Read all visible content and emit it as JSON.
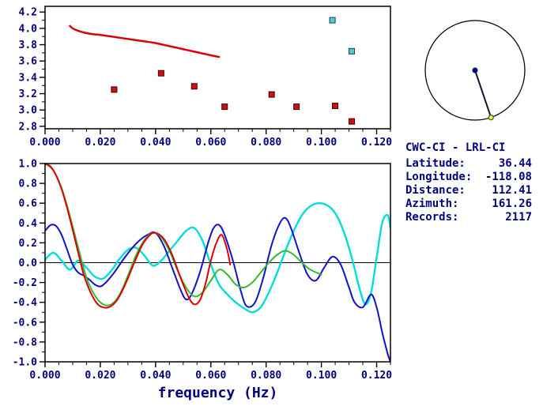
{
  "window": {
    "background": "#ffffff",
    "text_color": "#000080",
    "frame_color": "#000000"
  },
  "info_panel": {
    "title": "CWC-CI - LRL-CI",
    "rows": [
      {
        "label": "Latitude:",
        "value": "36.44"
      },
      {
        "label": "Longitude:",
        "value": "-118.08"
      },
      {
        "label": "Distance:",
        "value": "112.41"
      },
      {
        "label": "Azimuth:",
        "value": "161.26"
      },
      {
        "label": "Records:",
        "value": "2117"
      }
    ]
  },
  "azimuth_dial": {
    "azimuth_deg": 161.26,
    "circle_color": "#000000",
    "line_color": "#15152e",
    "center_dot_color": "#000080",
    "end_marker_stroke": "#557700",
    "end_marker_fill": "#eeee88"
  },
  "chart_data": [
    {
      "id": "top",
      "type": "scatter",
      "title": "",
      "xlabel": "",
      "ylabel": "",
      "x_range": [
        0,
        0.125
      ],
      "y_range": [
        2.77,
        4.27
      ],
      "x_minor_step": 0.005,
      "y_minor_step": 0.1,
      "grid": false,
      "x_ticks": {
        "values": [
          0,
          0.02,
          0.04,
          0.06,
          0.08,
          0.1,
          0.12
        ],
        "labels": [
          "0.000",
          "0.020",
          "0.040",
          "0.060",
          "0.080",
          "0.100",
          "0.120"
        ]
      },
      "y_ticks": {
        "values": [
          2.8,
          3.0,
          3.2,
          3.4,
          3.6,
          3.8,
          4.0,
          4.2
        ],
        "labels": [
          "2.8",
          "3.0",
          "3.2",
          "3.4",
          "3.6",
          "3.8",
          "4.0",
          "4.2"
        ]
      },
      "series": [
        {
          "name": "red-dispersion-curve",
          "type": "line",
          "color": "#dd0000",
          "width": 2.5,
          "points": [
            [
              0.009,
              4.03
            ],
            [
              0.01,
              4.0
            ],
            [
              0.012,
              3.97
            ],
            [
              0.014,
              3.95
            ],
            [
              0.017,
              3.93
            ],
            [
              0.02,
              3.92
            ],
            [
              0.024,
              3.9
            ],
            [
              0.028,
              3.88
            ],
            [
              0.032,
              3.86
            ],
            [
              0.036,
              3.84
            ],
            [
              0.04,
              3.82
            ],
            [
              0.044,
              3.79
            ],
            [
              0.048,
              3.76
            ],
            [
              0.052,
              3.73
            ],
            [
              0.056,
              3.7
            ],
            [
              0.06,
              3.67
            ],
            [
              0.063,
              3.65
            ]
          ]
        },
        {
          "name": "red-group-velocity-points",
          "type": "scatter",
          "marker": "square",
          "color": "#cc1111",
          "edge": "#440000",
          "size": 7,
          "points": [
            [
              0.025,
              3.25
            ],
            [
              0.042,
              3.45
            ],
            [
              0.054,
              3.29
            ],
            [
              0.065,
              3.04
            ],
            [
              0.082,
              3.19
            ],
            [
              0.091,
              3.04
            ],
            [
              0.105,
              3.05
            ],
            [
              0.111,
              2.86
            ]
          ]
        },
        {
          "name": "cyan-points",
          "type": "scatter",
          "marker": "square",
          "color": "#55cccc",
          "edge": "#114444",
          "size": 7,
          "points": [
            [
              0.104,
              4.1
            ],
            [
              0.111,
              3.72
            ]
          ]
        }
      ]
    },
    {
      "id": "bottom",
      "type": "line",
      "title": "",
      "xlabel": "frequency (Hz)",
      "ylabel": "",
      "x_range": [
        0,
        0.125
      ],
      "y_range": [
        -1.0,
        1.0
      ],
      "x_minor_step": 0.005,
      "y_minor_step": 0.1,
      "grid": false,
      "zero_line": true,
      "x_ticks": {
        "values": [
          0,
          0.02,
          0.04,
          0.06,
          0.08,
          0.1,
          0.12
        ],
        "labels": [
          "0.000",
          "0.020",
          "0.040",
          "0.060",
          "0.080",
          "0.100",
          "0.120"
        ]
      },
      "y_ticks": {
        "values": [
          1.0,
          0.8,
          0.6,
          0.4,
          0.2,
          0.0,
          -0.2,
          -0.4,
          -0.6,
          -0.8,
          -1.0
        ],
        "labels": [
          "1.0",
          "0.8",
          "0.6",
          "0.4",
          "0.2",
          "0.0",
          "-0.2",
          "-0.4",
          "-0.6",
          "-0.8",
          "-1.0"
        ]
      },
      "series": [
        {
          "name": "cyan-trace",
          "type": "line",
          "color": "#00dddd",
          "width": 2.4,
          "points": [
            [
              0,
              0.03
            ],
            [
              0.003,
              0.1
            ],
            [
              0.006,
              0.02
            ],
            [
              0.009,
              -0.07
            ],
            [
              0.012,
              0.02
            ],
            [
              0.015,
              -0.05
            ],
            [
              0.018,
              -0.14
            ],
            [
              0.021,
              -0.16
            ],
            [
              0.024,
              -0.08
            ],
            [
              0.027,
              0.04
            ],
            [
              0.03,
              0.13
            ],
            [
              0.033,
              0.15
            ],
            [
              0.036,
              0.07
            ],
            [
              0.039,
              -0.03
            ],
            [
              0.042,
              0.02
            ],
            [
              0.045,
              0.12
            ],
            [
              0.048,
              0.22
            ],
            [
              0.051,
              0.32
            ],
            [
              0.054,
              0.35
            ],
            [
              0.057,
              0.22
            ],
            [
              0.06,
              -0.02
            ],
            [
              0.063,
              -0.22
            ],
            [
              0.066,
              -0.32
            ],
            [
              0.069,
              -0.4
            ],
            [
              0.072,
              -0.46
            ],
            [
              0.075,
              -0.5
            ],
            [
              0.078,
              -0.45
            ],
            [
              0.081,
              -0.3
            ],
            [
              0.084,
              -0.1
            ],
            [
              0.087,
              0.12
            ],
            [
              0.09,
              0.32
            ],
            [
              0.093,
              0.48
            ],
            [
              0.096,
              0.57
            ],
            [
              0.099,
              0.6
            ],
            [
              0.102,
              0.58
            ],
            [
              0.105,
              0.5
            ],
            [
              0.108,
              0.32
            ],
            [
              0.111,
              0.05
            ],
            [
              0.114,
              -0.28
            ],
            [
              0.116,
              -0.42
            ],
            [
              0.118,
              -0.3
            ],
            [
              0.12,
              0.05
            ],
            [
              0.122,
              0.4
            ],
            [
              0.124,
              0.48
            ],
            [
              0.125,
              0.35
            ]
          ]
        },
        {
          "name": "blue-trace",
          "type": "line",
          "color": "#1111cc",
          "width": 2,
          "points": [
            [
              0,
              0.32
            ],
            [
              0.002,
              0.38
            ],
            [
              0.004,
              0.37
            ],
            [
              0.006,
              0.28
            ],
            [
              0.008,
              0.13
            ],
            [
              0.01,
              -0.02
            ],
            [
              0.012,
              -0.1
            ],
            [
              0.014,
              -0.13
            ],
            [
              0.016,
              -0.17
            ],
            [
              0.018,
              -0.22
            ],
            [
              0.02,
              -0.24
            ],
            [
              0.022,
              -0.2
            ],
            [
              0.025,
              -0.1
            ],
            [
              0.028,
              0.02
            ],
            [
              0.031,
              0.13
            ],
            [
              0.034,
              0.22
            ],
            [
              0.037,
              0.28
            ],
            [
              0.04,
              0.3
            ],
            [
              0.043,
              0.17
            ],
            [
              0.046,
              -0.05
            ],
            [
              0.049,
              -0.27
            ],
            [
              0.051,
              -0.37
            ],
            [
              0.053,
              -0.32
            ],
            [
              0.056,
              -0.1
            ],
            [
              0.059,
              0.2
            ],
            [
              0.061,
              0.35
            ],
            [
              0.063,
              0.38
            ],
            [
              0.065,
              0.28
            ],
            [
              0.068,
              0.02
            ],
            [
              0.071,
              -0.3
            ],
            [
              0.073,
              -0.44
            ],
            [
              0.076,
              -0.4
            ],
            [
              0.079,
              -0.15
            ],
            [
              0.082,
              0.18
            ],
            [
              0.085,
              0.4
            ],
            [
              0.087,
              0.45
            ],
            [
              0.089,
              0.35
            ],
            [
              0.092,
              0.1
            ],
            [
              0.095,
              -0.12
            ],
            [
              0.098,
              -0.18
            ],
            [
              0.101,
              -0.05
            ],
            [
              0.104,
              0.06
            ],
            [
              0.107,
              -0.02
            ],
            [
              0.11,
              -0.25
            ],
            [
              0.112,
              -0.4
            ],
            [
              0.115,
              -0.45
            ],
            [
              0.118,
              -0.32
            ],
            [
              0.12,
              -0.45
            ],
            [
              0.122,
              -0.7
            ],
            [
              0.124,
              -0.92
            ],
            [
              0.125,
              -1.0
            ]
          ]
        },
        {
          "name": "green-trace",
          "type": "line",
          "color": "#33bb33",
          "width": 2,
          "points": [
            [
              0,
              1.0
            ],
            [
              0.003,
              0.93
            ],
            [
              0.006,
              0.75
            ],
            [
              0.009,
              0.47
            ],
            [
              0.012,
              0.15
            ],
            [
              0.015,
              -0.15
            ],
            [
              0.018,
              -0.33
            ],
            [
              0.021,
              -0.42
            ],
            [
              0.024,
              -0.42
            ],
            [
              0.027,
              -0.32
            ],
            [
              0.03,
              -0.13
            ],
            [
              0.033,
              0.08
            ],
            [
              0.036,
              0.23
            ],
            [
              0.039,
              0.3
            ],
            [
              0.042,
              0.26
            ],
            [
              0.045,
              0.12
            ],
            [
              0.048,
              -0.08
            ],
            [
              0.051,
              -0.25
            ],
            [
              0.054,
              -0.34
            ],
            [
              0.057,
              -0.3
            ],
            [
              0.06,
              -0.18
            ],
            [
              0.063,
              -0.07
            ],
            [
              0.066,
              -0.12
            ],
            [
              0.069,
              -0.22
            ],
            [
              0.072,
              -0.25
            ],
            [
              0.075,
              -0.2
            ],
            [
              0.078,
              -0.1
            ],
            [
              0.081,
              0.0
            ],
            [
              0.084,
              0.08
            ],
            [
              0.087,
              0.12
            ],
            [
              0.09,
              0.08
            ],
            [
              0.093,
              0.0
            ],
            [
              0.096,
              -0.07
            ],
            [
              0.1,
              -0.12
            ]
          ]
        },
        {
          "name": "red-trace",
          "type": "line",
          "color": "#dd0000",
          "width": 2,
          "points": [
            [
              0,
              1.0
            ],
            [
              0.002,
              0.97
            ],
            [
              0.004,
              0.88
            ],
            [
              0.006,
              0.74
            ],
            [
              0.008,
              0.55
            ],
            [
              0.01,
              0.33
            ],
            [
              0.012,
              0.1
            ],
            [
              0.014,
              -0.12
            ],
            [
              0.016,
              -0.27
            ],
            [
              0.018,
              -0.38
            ],
            [
              0.02,
              -0.44
            ],
            [
              0.023,
              -0.45
            ],
            [
              0.026,
              -0.38
            ],
            [
              0.029,
              -0.22
            ],
            [
              0.032,
              -0.02
            ],
            [
              0.035,
              0.17
            ],
            [
              0.038,
              0.28
            ],
            [
              0.04,
              0.3
            ],
            [
              0.043,
              0.24
            ],
            [
              0.046,
              0.08
            ],
            [
              0.049,
              -0.15
            ],
            [
              0.052,
              -0.35
            ],
            [
              0.054,
              -0.42
            ],
            [
              0.056,
              -0.38
            ],
            [
              0.058,
              -0.22
            ],
            [
              0.06,
              0.02
            ],
            [
              0.062,
              0.2
            ],
            [
              0.064,
              0.28
            ],
            [
              0.066,
              0.12
            ],
            [
              0.067,
              -0.02
            ]
          ]
        }
      ]
    }
  ]
}
